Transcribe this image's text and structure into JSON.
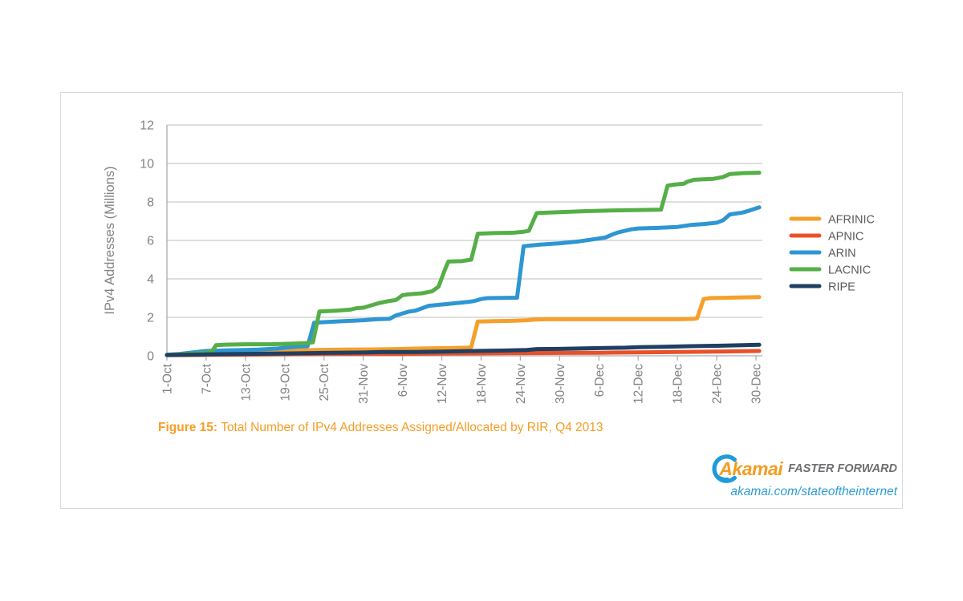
{
  "figure": {
    "label": "Figure 15:",
    "caption": "Total Number of IPv4 Addresses Assigned/Allocated by RIR, Q4 2013"
  },
  "branding": {
    "logo_text": "Akamai",
    "tagline": "FASTER FORWARD",
    "url": "akamai.com/stateoftheinternet"
  },
  "colors": {
    "axis": "#a8aaac",
    "gridline": "#c9cacb",
    "tick_text": "#808285",
    "legend_text": "#5a5b5e",
    "caption": "#f59d25",
    "url": "#2f9cd6",
    "card_border": "#d9dadb",
    "logo_orange": "#f49c20",
    "logo_blue": "#1e9cd7"
  },
  "chart_data": {
    "type": "line",
    "title": "Total Number of IPv4 Addresses Assigned/Allocated by RIR, Q4 2013",
    "ylabel": "IPv4 Addresses (Millions)",
    "ylim": [
      0,
      12
    ],
    "yticks": [
      0,
      2,
      4,
      6,
      8,
      10,
      12
    ],
    "grid": true,
    "legend_position": "right",
    "x_unit": "days since 1-Oct-2013",
    "x_tick_days": [
      0,
      6,
      12,
      18,
      24,
      30,
      36,
      42,
      48,
      54,
      60,
      66,
      72,
      78,
      84,
      90
    ],
    "x_tick_labels": [
      "1-Oct",
      "7-Oct",
      "13-Oct",
      "19-Oct",
      "25-Oct",
      "31-Nov",
      "6-Nov",
      "12-Nov",
      "18-Nov",
      "24-Nov",
      "30-Nov",
      "6-Dec",
      "12-Dec",
      "18-Dec",
      "24-Dec",
      "30-Dec"
    ],
    "series": [
      {
        "name": "AFRINIC",
        "color": "#f5a02b",
        "points": [
          [
            0,
            0.05
          ],
          [
            4,
            0.1
          ],
          [
            8,
            0.16
          ],
          [
            12,
            0.2
          ],
          [
            16,
            0.25
          ],
          [
            19,
            0.28
          ],
          [
            23,
            0.3
          ],
          [
            27,
            0.32
          ],
          [
            31,
            0.33
          ],
          [
            35,
            0.35
          ],
          [
            39,
            0.38
          ],
          [
            43,
            0.4
          ],
          [
            46,
            0.42
          ],
          [
            46.5,
            0.45
          ],
          [
            47.5,
            1.78
          ],
          [
            50,
            1.8
          ],
          [
            53,
            1.82
          ],
          [
            55,
            1.85
          ],
          [
            56,
            1.88
          ],
          [
            58,
            1.9
          ],
          [
            65,
            1.9
          ],
          [
            72,
            1.9
          ],
          [
            78,
            1.9
          ],
          [
            80.5,
            1.92
          ],
          [
            81,
            1.95
          ],
          [
            82,
            2.95
          ],
          [
            83,
            3.0
          ],
          [
            90.5,
            3.05
          ]
        ]
      },
      {
        "name": "APNIC",
        "color": "#e85129",
        "points": [
          [
            0,
            0.03
          ],
          [
            6,
            0.05
          ],
          [
            12,
            0.06
          ],
          [
            18,
            0.08
          ],
          [
            24,
            0.09
          ],
          [
            30,
            0.1
          ],
          [
            36,
            0.1
          ],
          [
            42,
            0.12
          ],
          [
            48,
            0.13
          ],
          [
            54,
            0.14
          ],
          [
            60,
            0.15
          ],
          [
            66,
            0.16
          ],
          [
            72,
            0.18
          ],
          [
            78,
            0.2
          ],
          [
            84,
            0.22
          ],
          [
            90.5,
            0.25
          ]
        ]
      },
      {
        "name": "ARIN",
        "color": "#2e96d2",
        "points": [
          [
            0,
            0.05
          ],
          [
            2,
            0.1
          ],
          [
            4,
            0.18
          ],
          [
            6,
            0.25
          ],
          [
            9,
            0.28
          ],
          [
            12,
            0.3
          ],
          [
            14,
            0.32
          ],
          [
            17,
            0.38
          ],
          [
            18,
            0.42
          ],
          [
            20,
            0.48
          ],
          [
            21.5,
            0.5
          ],
          [
            22.5,
            1.72
          ],
          [
            24,
            1.75
          ],
          [
            27,
            1.8
          ],
          [
            30,
            1.85
          ],
          [
            32,
            1.9
          ],
          [
            34,
            1.92
          ],
          [
            35,
            2.1
          ],
          [
            37,
            2.3
          ],
          [
            38,
            2.35
          ],
          [
            40,
            2.6
          ],
          [
            43,
            2.7
          ],
          [
            46,
            2.8
          ],
          [
            47,
            2.85
          ],
          [
            48,
            2.95
          ],
          [
            49,
            3.0
          ],
          [
            53.5,
            3.02
          ],
          [
            54.5,
            5.7
          ],
          [
            57,
            5.78
          ],
          [
            60,
            5.85
          ],
          [
            63,
            5.95
          ],
          [
            65,
            6.05
          ],
          [
            66,
            6.1
          ],
          [
            67,
            6.15
          ],
          [
            68,
            6.3
          ],
          [
            69,
            6.42
          ],
          [
            70,
            6.5
          ],
          [
            71,
            6.58
          ],
          [
            72,
            6.62
          ],
          [
            75,
            6.65
          ],
          [
            78,
            6.7
          ],
          [
            80,
            6.8
          ],
          [
            82,
            6.85
          ],
          [
            84,
            6.92
          ],
          [
            85,
            7.05
          ],
          [
            86,
            7.35
          ],
          [
            88,
            7.45
          ],
          [
            89,
            7.55
          ],
          [
            90.5,
            7.72
          ]
        ]
      },
      {
        "name": "LACNIC",
        "color": "#55af47",
        "points": [
          [
            0,
            0.05
          ],
          [
            3,
            0.1
          ],
          [
            6,
            0.15
          ],
          [
            6.8,
            0.2
          ],
          [
            7.5,
            0.55
          ],
          [
            9,
            0.58
          ],
          [
            12,
            0.6
          ],
          [
            16,
            0.6
          ],
          [
            18,
            0.62
          ],
          [
            21,
            0.65
          ],
          [
            22.3,
            0.7
          ],
          [
            23.3,
            2.3
          ],
          [
            26,
            2.35
          ],
          [
            28,
            2.4
          ],
          [
            29,
            2.48
          ],
          [
            30,
            2.5
          ],
          [
            31.5,
            2.65
          ],
          [
            32.5,
            2.75
          ],
          [
            34,
            2.85
          ],
          [
            35,
            2.9
          ],
          [
            36,
            3.15
          ],
          [
            37,
            3.2
          ],
          [
            39,
            3.25
          ],
          [
            40.5,
            3.35
          ],
          [
            41.5,
            3.6
          ],
          [
            42.5,
            4.5
          ],
          [
            43,
            4.9
          ],
          [
            45,
            4.92
          ],
          [
            46.5,
            5.0
          ],
          [
            47.5,
            6.35
          ],
          [
            50,
            6.38
          ],
          [
            53,
            6.4
          ],
          [
            54.5,
            6.45
          ],
          [
            55.3,
            6.5
          ],
          [
            56.5,
            7.42
          ],
          [
            60,
            7.47
          ],
          [
            64,
            7.52
          ],
          [
            68,
            7.56
          ],
          [
            72,
            7.58
          ],
          [
            75.5,
            7.6
          ],
          [
            76.5,
            8.85
          ],
          [
            77.5,
            8.9
          ],
          [
            79,
            8.95
          ],
          [
            79.5,
            9.05
          ],
          [
            80.5,
            9.15
          ],
          [
            82,
            9.18
          ],
          [
            83.5,
            9.2
          ],
          [
            85,
            9.3
          ],
          [
            86,
            9.45
          ],
          [
            88,
            9.5
          ],
          [
            90.5,
            9.52
          ]
        ]
      },
      {
        "name": "RIPE",
        "color": "#1f3f63",
        "points": [
          [
            0,
            0.04
          ],
          [
            6,
            0.07
          ],
          [
            12,
            0.1
          ],
          [
            18,
            0.12
          ],
          [
            24,
            0.15
          ],
          [
            30,
            0.17
          ],
          [
            33,
            0.2
          ],
          [
            38,
            0.2
          ],
          [
            42,
            0.22
          ],
          [
            47,
            0.25
          ],
          [
            51,
            0.27
          ],
          [
            55,
            0.3
          ],
          [
            56.5,
            0.35
          ],
          [
            60,
            0.36
          ],
          [
            63,
            0.38
          ],
          [
            66,
            0.4
          ],
          [
            70,
            0.42
          ],
          [
            72,
            0.45
          ],
          [
            76,
            0.47
          ],
          [
            80,
            0.5
          ],
          [
            84,
            0.52
          ],
          [
            88,
            0.55
          ],
          [
            90.5,
            0.57
          ]
        ]
      }
    ]
  }
}
